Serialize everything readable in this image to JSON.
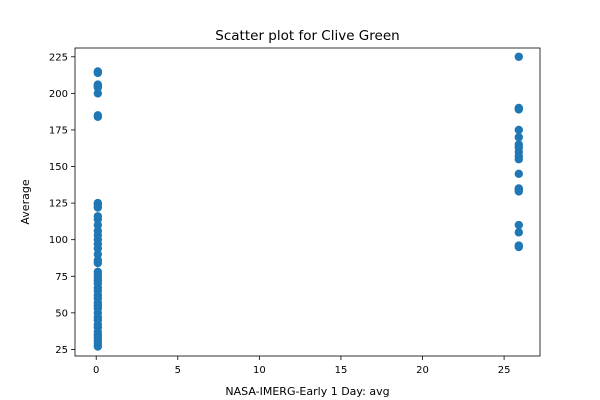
{
  "chart_data": {
    "type": "scatter",
    "title": "Scatter plot for Clive Green",
    "xlabel": "NASA-IMERG-Early 1 Day: avg",
    "ylabel": "Average",
    "xlim": [
      -1.3,
      27.2
    ],
    "ylim": [
      20.5,
      231
    ],
    "xticks": [
      0,
      5,
      10,
      15,
      20,
      25
    ],
    "yticks": [
      25,
      50,
      75,
      100,
      125,
      150,
      175,
      200,
      225
    ],
    "grid": false,
    "legend": "none",
    "marker_color": "#1f77b4",
    "series": [
      {
        "points": [
          [
            0.1,
            215
          ],
          [
            0.1,
            214
          ],
          [
            0.1,
            206
          ],
          [
            0.1,
            205
          ],
          [
            0.1,
            204
          ],
          [
            0.1,
            200
          ],
          [
            0.1,
            185
          ],
          [
            0.1,
            184
          ],
          [
            0.1,
            125
          ],
          [
            0.1,
            124
          ],
          [
            0.1,
            122
          ],
          [
            0.1,
            116
          ],
          [
            0.1,
            114
          ],
          [
            0.1,
            110
          ],
          [
            0.1,
            106
          ],
          [
            0.1,
            103
          ],
          [
            0.1,
            100
          ],
          [
            0.1,
            97
          ],
          [
            0.1,
            94
          ],
          [
            0.1,
            90
          ],
          [
            0.1,
            86
          ],
          [
            0.1,
            84
          ],
          [
            0.1,
            78
          ],
          [
            0.1,
            76
          ],
          [
            0.1,
            74
          ],
          [
            0.1,
            72
          ],
          [
            0.1,
            70
          ],
          [
            0.1,
            67
          ],
          [
            0.1,
            65
          ],
          [
            0.1,
            62
          ],
          [
            0.1,
            60
          ],
          [
            0.1,
            57
          ],
          [
            0.1,
            55
          ],
          [
            0.1,
            53
          ],
          [
            0.1,
            50
          ],
          [
            0.1,
            47
          ],
          [
            0.1,
            45
          ],
          [
            0.1,
            42
          ],
          [
            0.1,
            40
          ],
          [
            0.1,
            37
          ],
          [
            0.1,
            35
          ],
          [
            0.1,
            33
          ],
          [
            0.1,
            31
          ],
          [
            0.1,
            29
          ],
          [
            0.1,
            27
          ],
          [
            25.9,
            225
          ],
          [
            25.9,
            190
          ],
          [
            25.9,
            189
          ],
          [
            25.9,
            175
          ],
          [
            25.9,
            170
          ],
          [
            25.9,
            165
          ],
          [
            25.9,
            163
          ],
          [
            25.9,
            160
          ],
          [
            25.9,
            157
          ],
          [
            25.9,
            155
          ],
          [
            25.9,
            145
          ],
          [
            25.9,
            135
          ],
          [
            25.9,
            134
          ],
          [
            25.9,
            133
          ],
          [
            25.9,
            110
          ],
          [
            25.9,
            105
          ],
          [
            25.9,
            96
          ],
          [
            25.9,
            95
          ]
        ]
      }
    ]
  }
}
